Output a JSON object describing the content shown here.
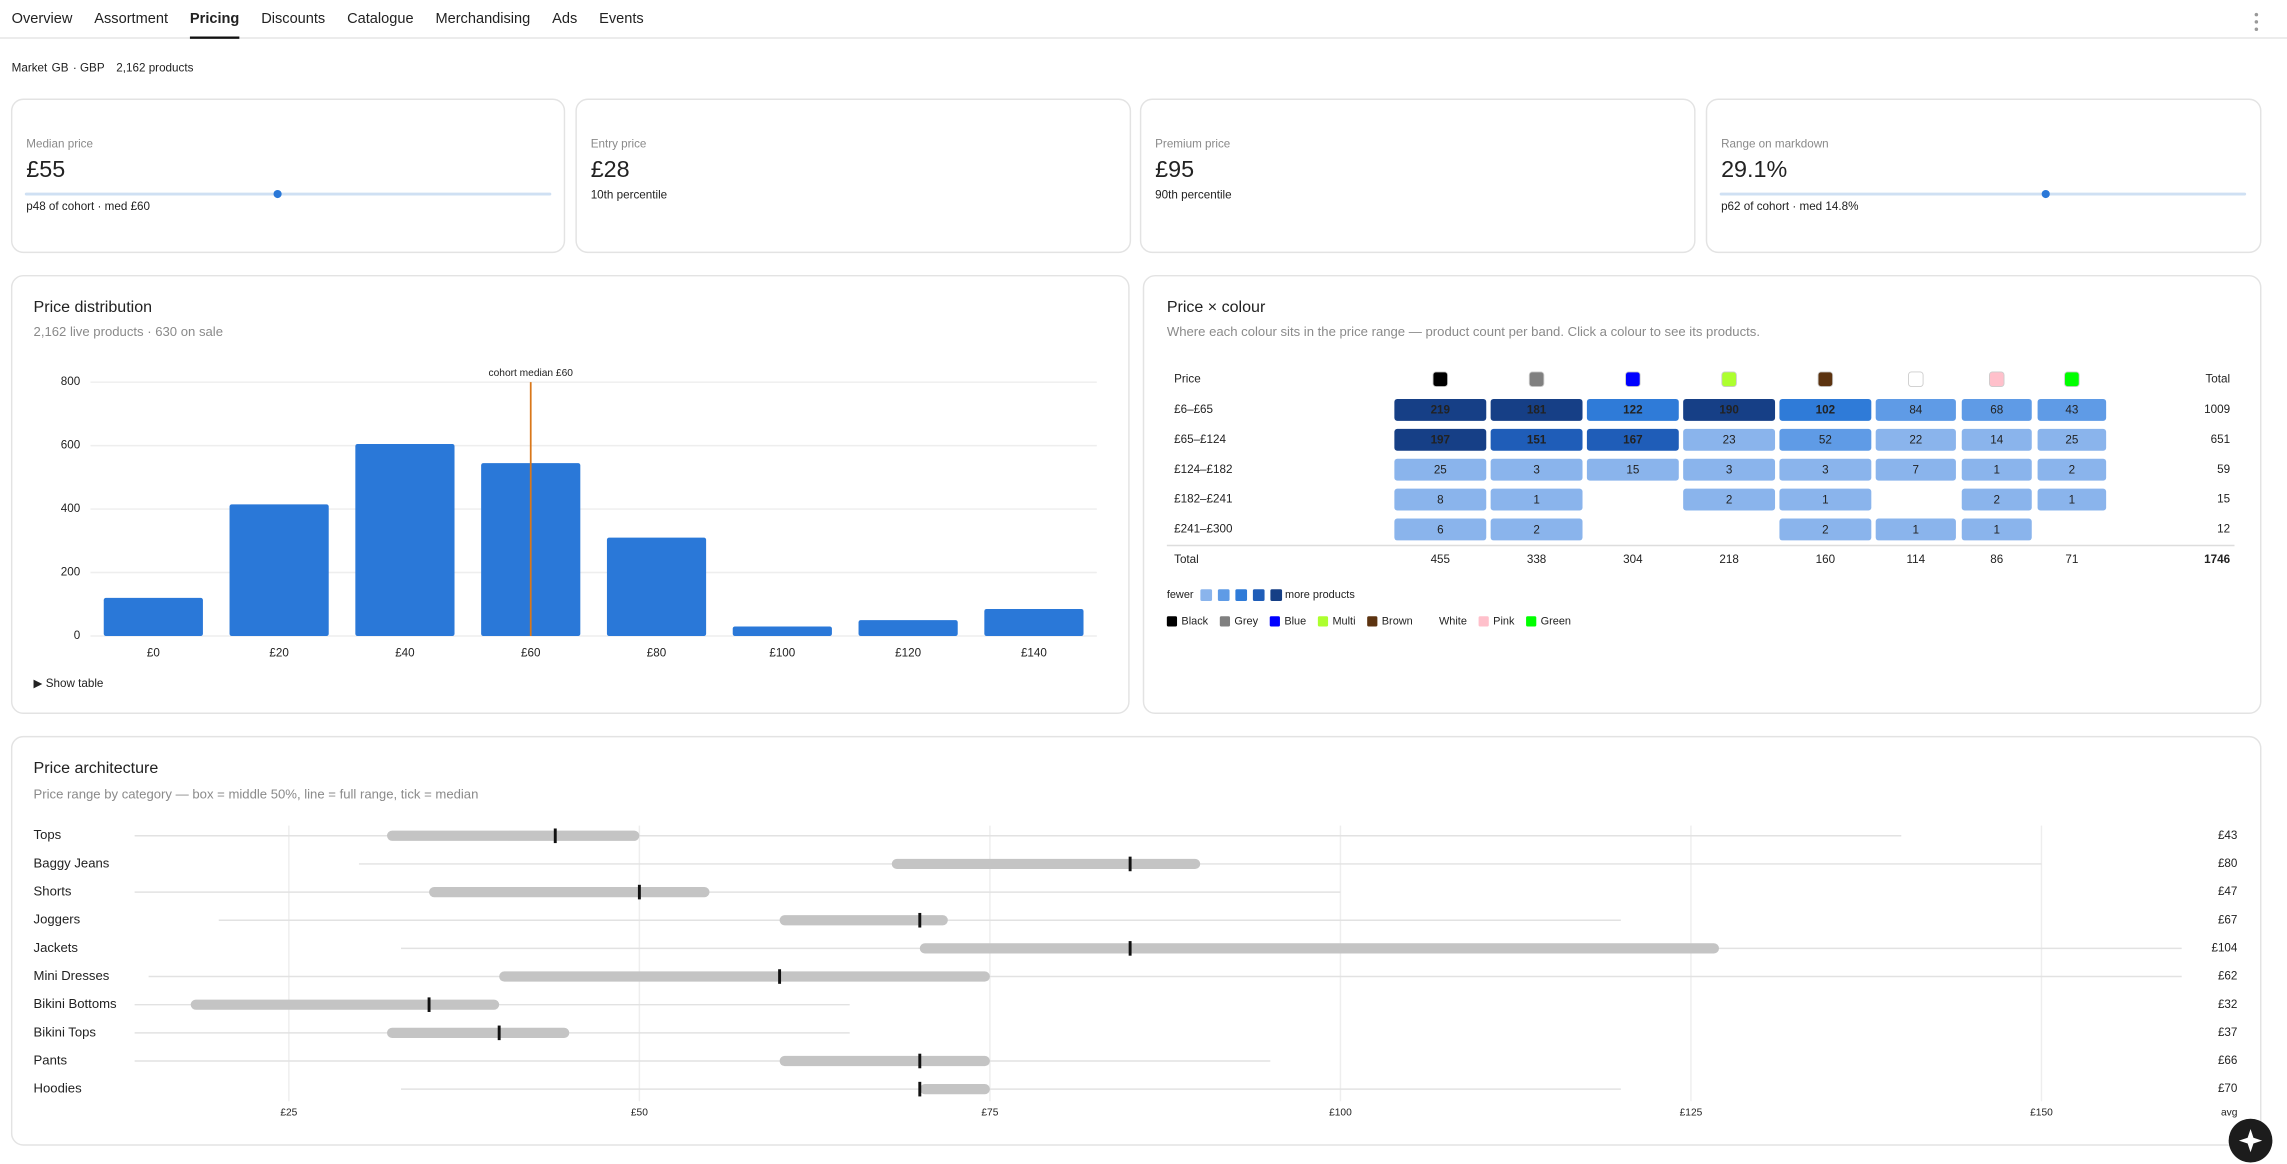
{
  "nav": {
    "tabs": [
      "Overview",
      "Assortment",
      "Pricing",
      "Discounts",
      "Catalogue",
      "Merchandising",
      "Ads",
      "Events"
    ],
    "active_tab": "Pricing"
  },
  "market": {
    "label": "Market",
    "code": "GB",
    "currency": "· GBP",
    "products": "2,162 products"
  },
  "kpis": [
    {
      "label": "Median price",
      "value": "£55",
      "note": "p48 of cohort · med £60",
      "percentile": 48
    },
    {
      "label": "Entry price",
      "value": "£28",
      "note": "10th percentile"
    },
    {
      "label": "Premium price",
      "value": "£95",
      "note": "90th percentile"
    },
    {
      "label": "Range on markdown",
      "value": "29.1%",
      "note": "p62 of cohort · med 14.8%",
      "percentile": 62
    }
  ],
  "chart_data": [
    {
      "type": "bar",
      "title": "Price distribution",
      "subtitle": "2,162 live products · 630 on sale",
      "categories": [
        "£0",
        "£20",
        "£40",
        "£60",
        "£80",
        "£100",
        "£120",
        "£140"
      ],
      "values": [
        120,
        415,
        605,
        545,
        310,
        30,
        50,
        85
      ],
      "color": "#2a78d8",
      "ylim": [
        0,
        800
      ],
      "yticks": [
        0,
        200,
        400,
        600,
        800
      ],
      "grid": true,
      "annotation": {
        "text": "cohort median £60",
        "category": "£60",
        "color": "#d9771a"
      },
      "toggle": "▶ Show table"
    },
    {
      "type": "range",
      "title": "Price architecture",
      "subtitle": "Price range by category — box = middle 50%, line = full range, tick = median",
      "categories": [
        "Tops",
        "Baggy Jeans",
        "Shorts",
        "Joggers",
        "Jackets",
        "Mini Dresses",
        "Bikini Bottoms",
        "Bikini Tops",
        "Pants",
        "Hoodies"
      ],
      "min": [
        14,
        30,
        14,
        20,
        33,
        15,
        14,
        14,
        14,
        33
      ],
      "q1": [
        32,
        68,
        35,
        60,
        70,
        40,
        18,
        32,
        60,
        70
      ],
      "median": [
        44,
        85,
        50,
        70,
        85,
        60,
        35,
        40,
        70,
        70
      ],
      "q3": [
        50,
        90,
        55,
        72,
        127,
        75,
        40,
        45,
        75,
        75
      ],
      "max": [
        140,
        150,
        100,
        120,
        160,
        160,
        65,
        65,
        95,
        120
      ],
      "avg_title": "avg",
      "avg_labels": [
        "£43",
        "£80",
        "£47",
        "£67",
        "£104",
        "£62",
        "£32",
        "£37",
        "£66",
        "£70"
      ],
      "xlim": [
        14,
        160
      ],
      "xticks": [
        {
          "value": 25,
          "label": "£25"
        },
        {
          "value": 50,
          "label": "£50"
        },
        {
          "value": 75,
          "label": "£75"
        },
        {
          "value": 100,
          "label": "£100"
        },
        {
          "value": 125,
          "label": "£125"
        },
        {
          "value": 150,
          "label": "£150"
        }
      ],
      "grid": true,
      "box_color": "#c4c4c4",
      "line_color": "#e2e2e2",
      "median_color": "#111111"
    }
  ],
  "colour_table": {
    "title": "Price × colour",
    "subtitle": "Where each colour sits in the price range — product count per band. Click a colour to see its products.",
    "price_header": "Price",
    "total_header": "Total",
    "colours": [
      {
        "name": "Black",
        "color": "#000000"
      },
      {
        "name": "Grey",
        "color": "#808080"
      },
      {
        "name": "Blue",
        "color": "#0000ff"
      },
      {
        "name": "Multi",
        "color": "#adff2f"
      },
      {
        "name": "Brown",
        "color": "#5c3310"
      },
      {
        "name": "White",
        "color": "#ffffff"
      },
      {
        "name": "Pink",
        "color": "#ffc0cb"
      },
      {
        "name": "Green",
        "color": "#00ff00"
      }
    ],
    "rows": [
      {
        "label": "£6–£65",
        "counts": [
          219,
          181,
          122,
          190,
          102,
          84,
          68,
          43
        ],
        "total": 1009
      },
      {
        "label": "£65–£124",
        "counts": [
          197,
          151,
          167,
          23,
          52,
          22,
          14,
          25
        ],
        "total": 651
      },
      {
        "label": "£124–£182",
        "counts": [
          25,
          3,
          15,
          3,
          3,
          7,
          1,
          2
        ],
        "total": 59
      },
      {
        "label": "£182–£241",
        "counts": [
          8,
          1,
          null,
          2,
          1,
          null,
          2,
          1
        ],
        "total": 15
      },
      {
        "label": "£241–£300",
        "counts": [
          6,
          2,
          null,
          null,
          2,
          1,
          1,
          null
        ],
        "total": 12
      }
    ],
    "totals_label": "Total",
    "column_totals": [
      455,
      338,
      304,
      218,
      160,
      114,
      86,
      71
    ],
    "grand_total": 1746,
    "scale": {
      "low": "fewer",
      "high": "more products",
      "colors": [
        "#8ab4ec",
        "#5f9be6",
        "#2f7bd8",
        "#1f5db8",
        "#163f86"
      ]
    }
  }
}
